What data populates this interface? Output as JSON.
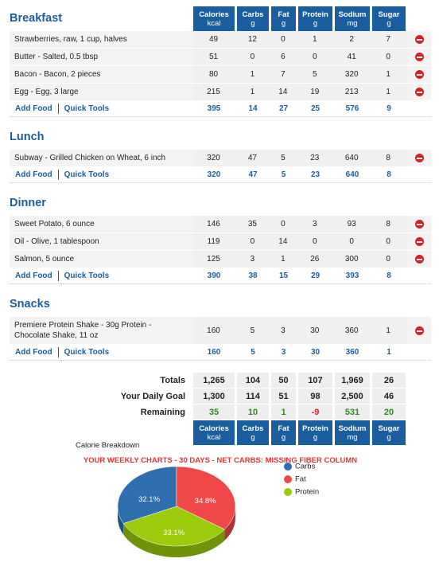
{
  "columns": [
    {
      "name": "Calories",
      "unit": "kcal"
    },
    {
      "name": "Carbs",
      "unit": "g"
    },
    {
      "name": "Fat",
      "unit": "g"
    },
    {
      "name": "Protein",
      "unit": "g"
    },
    {
      "name": "Sodium",
      "unit": "mg"
    },
    {
      "name": "Sugar",
      "unit": "g"
    }
  ],
  "links": {
    "add_food": "Add Food",
    "quick_tools": "Quick Tools"
  },
  "meals": [
    {
      "name": "Breakfast",
      "items": [
        {
          "food": "Strawberries, raw, 1 cup, halves",
          "values": [
            49,
            12,
            0,
            1,
            2,
            7
          ]
        },
        {
          "food": "Butter - Salted, 0.5 tbsp",
          "values": [
            51,
            0,
            6,
            0,
            41,
            0
          ]
        },
        {
          "food": "Bacon - Bacon, 2 pieces",
          "values": [
            80,
            1,
            7,
            5,
            320,
            1
          ]
        },
        {
          "food": "Egg - Egg, 3 large",
          "values": [
            215,
            1,
            14,
            19,
            213,
            1
          ]
        }
      ],
      "totals": [
        395,
        14,
        27,
        25,
        576,
        9
      ]
    },
    {
      "name": "Lunch",
      "items": [
        {
          "food": "Subway - Grilled Chicken on Wheat, 6 inch",
          "values": [
            320,
            47,
            5,
            23,
            640,
            8
          ]
        }
      ],
      "totals": [
        320,
        47,
        5,
        23,
        640,
        8
      ]
    },
    {
      "name": "Dinner",
      "items": [
        {
          "food": "Sweet Potato, 6 ounce",
          "values": [
            146,
            35,
            0,
            3,
            93,
            8
          ]
        },
        {
          "food": "Oil - Olive, 1 tablespoon",
          "values": [
            119,
            0,
            14,
            0,
            0,
            0
          ]
        },
        {
          "food": "Salmon, 5 ounce",
          "values": [
            125,
            3,
            1,
            26,
            300,
            0
          ]
        }
      ],
      "totals": [
        390,
        38,
        15,
        29,
        393,
        8
      ]
    },
    {
      "name": "Snacks",
      "items": [
        {
          "food": "Premiere Protein Shake - 30g Protein - Chocolate Shake, 11 oz",
          "values": [
            160,
            5,
            3,
            30,
            360,
            1
          ]
        }
      ],
      "totals": [
        160,
        5,
        3,
        30,
        360,
        1
      ]
    }
  ],
  "summary": [
    {
      "label": "Totals",
      "values": [
        "1,265",
        104,
        50,
        107,
        "1,969",
        26
      ]
    },
    {
      "label": "Your Daily Goal",
      "values": [
        "1,300",
        114,
        51,
        98,
        "2,500",
        46
      ]
    },
    {
      "label": "Remaining",
      "values": [
        35,
        10,
        1,
        -9,
        531,
        20
      ]
    }
  ],
  "weekly_charts": "YOUR WEEKLY CHARTS - 30 DAYS - NET CARBS: MISSING FIBER COLUMN",
  "chart_data": {
    "type": "pie",
    "title": "Calorie Breakdown",
    "categories": [
      "Carbs",
      "Fat",
      "Protein"
    ],
    "values": [
      32.1,
      34.8,
      33.1
    ],
    "value_labels": [
      "32.1%",
      "34.8%",
      "33.1%"
    ],
    "colors": [
      "#2f6faf",
      "#f04848",
      "#9ccb0c"
    ]
  }
}
